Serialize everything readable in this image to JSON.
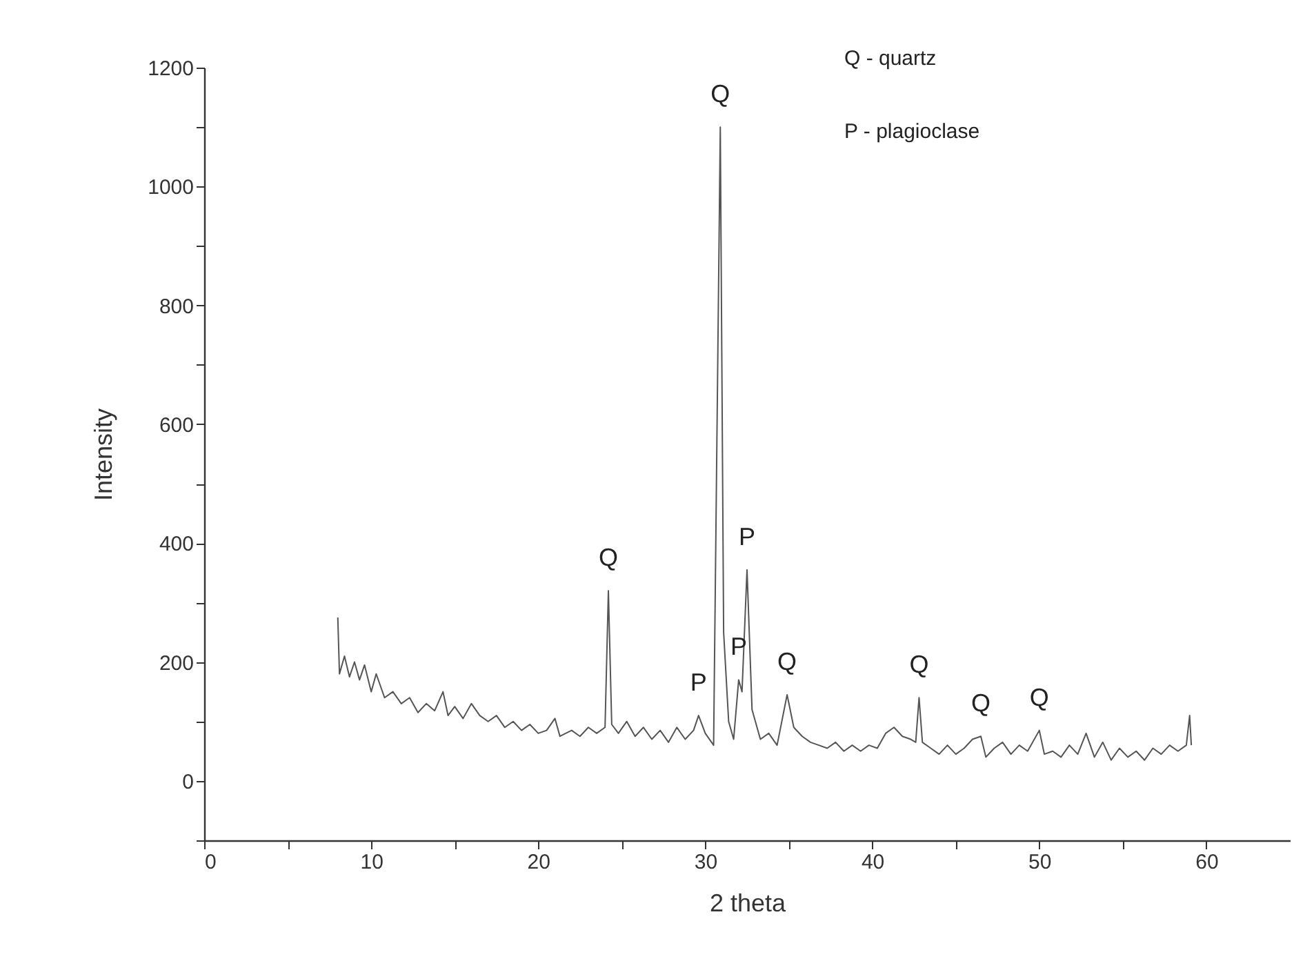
{
  "chart_data": {
    "type": "line",
    "xlabel": "2 theta",
    "ylabel": "Intensity",
    "xlim": [
      0,
      65
    ],
    "ylim": [
      -100,
      1200
    ],
    "xticks": [
      0,
      {
        "value": 5,
        "label": null
      },
      10,
      {
        "value": 15,
        "label": null
      },
      20,
      {
        "value": 25,
        "label": null
      },
      30,
      {
        "value": 35,
        "label": null
      },
      40,
      {
        "value": 45,
        "label": null
      },
      50,
      {
        "value": 55,
        "label": null
      },
      60
    ],
    "yticks": [
      {
        "value": -100,
        "label": null
      },
      0,
      {
        "value": 100,
        "label": null
      },
      200,
      {
        "value": 300,
        "label": null
      },
      400,
      {
        "value": 500,
        "label": null
      },
      600,
      {
        "value": 700,
        "label": null
      },
      800,
      {
        "value": 900,
        "label": null
      },
      1000,
      {
        "value": 1100,
        "label": null
      },
      1200
    ],
    "grid": false,
    "line_style": "solid",
    "x": [
      8.0,
      8.1,
      8.4,
      8.7,
      9.0,
      9.3,
      9.6,
      10.0,
      10.3,
      10.8,
      11.3,
      11.8,
      12.3,
      12.8,
      13.3,
      13.8,
      14.3,
      14.6,
      15.0,
      15.5,
      16.0,
      16.5,
      17.0,
      17.5,
      18.0,
      18.5,
      19.0,
      19.5,
      20.0,
      20.5,
      21.0,
      21.3,
      22.0,
      22.5,
      23.0,
      23.5,
      24.0,
      24.2,
      24.4,
      24.8,
      25.3,
      25.8,
      26.3,
      26.8,
      27.3,
      27.8,
      28.3,
      28.8,
      29.3,
      29.6,
      30.0,
      30.5,
      30.9,
      31.1,
      31.4,
      31.7,
      32.0,
      32.2,
      32.5,
      32.8,
      33.3,
      33.8,
      34.3,
      34.9,
      35.3,
      35.8,
      36.3,
      36.8,
      37.3,
      37.8,
      38.3,
      38.8,
      39.3,
      39.8,
      40.3,
      40.8,
      41.3,
      41.8,
      42.3,
      42.6,
      42.8,
      43.0,
      43.5,
      44.0,
      44.5,
      45.0,
      45.5,
      46.0,
      46.5,
      46.8,
      47.3,
      47.8,
      48.3,
      48.8,
      49.3,
      50.0,
      50.3,
      50.8,
      51.3,
      51.8,
      52.3,
      52.8,
      53.3,
      53.8,
      54.3,
      54.8,
      55.3,
      55.8,
      56.3,
      56.8,
      57.3,
      57.8,
      58.3,
      58.8,
      59.0,
      59.1
    ],
    "series": [
      {
        "color": "#555555",
        "values": [
          275,
          180,
          210,
          175,
          200,
          170,
          195,
          150,
          180,
          140,
          150,
          130,
          140,
          115,
          130,
          118,
          150,
          110,
          125,
          105,
          130,
          110,
          100,
          110,
          90,
          100,
          85,
          95,
          80,
          85,
          105,
          75,
          85,
          75,
          90,
          80,
          90,
          320,
          95,
          80,
          100,
          75,
          90,
          70,
          85,
          65,
          90,
          70,
          85,
          110,
          80,
          60,
          1100,
          250,
          100,
          70,
          170,
          150,
          355,
          120,
          70,
          80,
          60,
          145,
          90,
          75,
          65,
          60,
          55,
          65,
          50,
          60,
          50,
          60,
          55,
          80,
          90,
          75,
          70,
          65,
          140,
          65,
          55,
          45,
          60,
          45,
          55,
          70,
          75,
          40,
          55,
          65,
          45,
          60,
          50,
          85,
          45,
          50,
          40,
          60,
          45,
          80,
          40,
          65,
          35,
          55,
          40,
          50,
          35,
          55,
          45,
          60,
          50,
          60,
          110,
          60
        ]
      }
    ],
    "annotations": [
      {
        "text": "Q",
        "x": 30.9,
        "y": 1100
      },
      {
        "text": "Q",
        "x": 24.2,
        "y": 320
      },
      {
        "text": "P",
        "x": 29.6,
        "y": 110
      },
      {
        "text": "P",
        "x": 32.0,
        "y": 170
      },
      {
        "text": "P",
        "x": 32.5,
        "y": 355
      },
      {
        "text": "Q",
        "x": 34.9,
        "y": 145
      },
      {
        "text": "Q",
        "x": 42.8,
        "y": 140
      },
      {
        "text": "Q",
        "x": 46.5,
        "y": 75
      },
      {
        "text": "Q",
        "x": 50.0,
        "y": 85
      },
      "Q - quartz",
      "P - plagioclase"
    ]
  }
}
